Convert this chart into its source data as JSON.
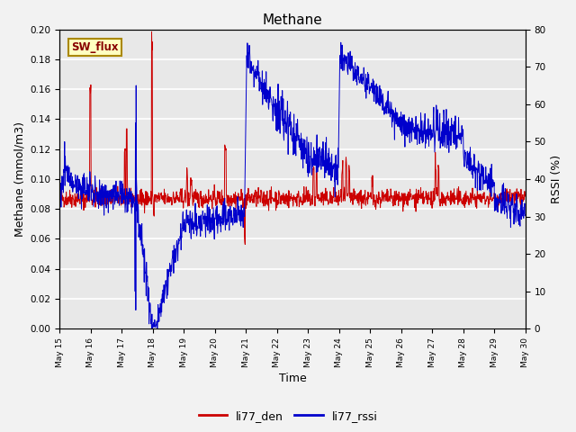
{
  "title": "Methane",
  "xlabel": "Time",
  "ylabel_left": "Methane (mmol/m3)",
  "ylabel_right": "RSSI (%)",
  "ylim_left": [
    0.0,
    0.2
  ],
  "ylim_right": [
    0,
    80
  ],
  "yticks_left": [
    0.0,
    0.02,
    0.04,
    0.06,
    0.08,
    0.1,
    0.12,
    0.14,
    0.16,
    0.18,
    0.2
  ],
  "yticks_right": [
    0,
    10,
    20,
    30,
    40,
    50,
    60,
    70,
    80
  ],
  "xtick_labels": [
    "May 15",
    "May 16",
    "May 17",
    "May 18",
    "May 19",
    "May 20",
    "May 21",
    "May 22",
    "May 23",
    "May 24",
    "May 25",
    "May 26",
    "May 27",
    "May 28",
    "May 29",
    "May 30"
  ],
  "color_den": "#CC0000",
  "color_rssi": "#0000CC",
  "legend_labels": [
    "li77_den",
    "li77_rssi"
  ],
  "annotation_text": "SW_flux",
  "annotation_bg": "#FFFFC0",
  "annotation_border": "#AA8800",
  "background_color": "#E8E8E8",
  "fig_background": "#F2F2F2",
  "grid_color": "#FFFFFF",
  "title_fontsize": 11,
  "axis_label_fontsize": 9,
  "tick_fontsize": 7.5
}
